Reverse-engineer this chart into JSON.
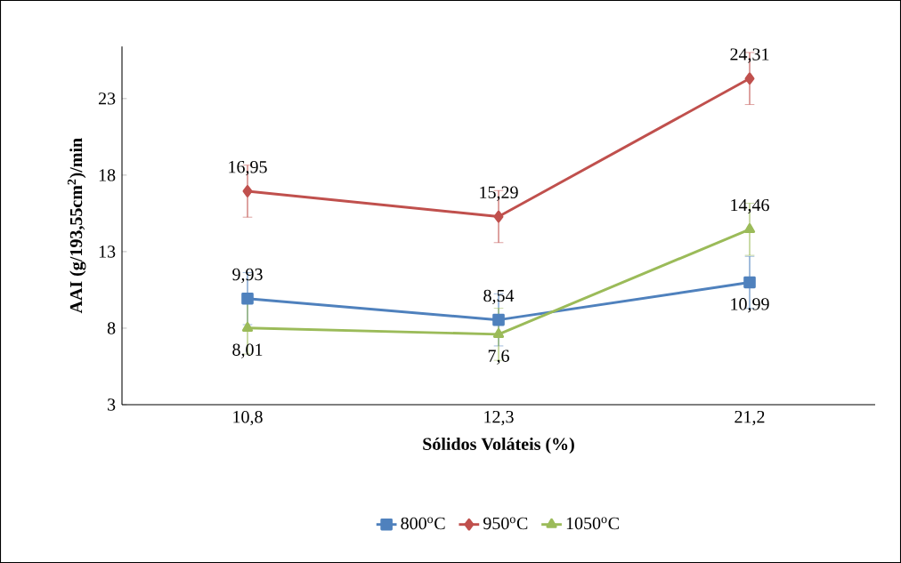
{
  "chart_data": {
    "type": "line",
    "xlabel": "Sólidos Voláteis (%)",
    "ylabel": "AAI  (g/193,55cm$^{2}$)/min",
    "categories": [
      "10,8",
      "12,3",
      "21,2"
    ],
    "ylim": [
      3,
      26.4
    ],
    "yticks": [
      3,
      8,
      13,
      18,
      23
    ],
    "series": [
      {
        "name": "800$^{o}$C",
        "color": "#4f81bd",
        "marker": "square",
        "values": [
          9.93,
          8.54,
          10.99
        ],
        "errors": [
          1.7,
          1.7,
          1.7
        ],
        "value_labels": [
          "9,93",
          "8,54",
          "10,99"
        ]
      },
      {
        "name": "950$^{o}$C",
        "color": "#c0504d",
        "marker": "diamond",
        "values": [
          16.95,
          15.29,
          24.31
        ],
        "errors": [
          1.7,
          1.7,
          1.7
        ],
        "value_labels": [
          "16,95",
          "15,29",
          "24,31"
        ]
      },
      {
        "name": "1050$^{o}$C",
        "color": "#9bbb59",
        "marker": "triangle",
        "values": [
          8.01,
          7.6,
          14.46
        ],
        "errors": [
          1.7,
          1.7,
          1.7
        ],
        "value_labels": [
          "8,01",
          "7,6",
          "14,46"
        ]
      }
    ],
    "legend": "bottom",
    "grid": false,
    "line_style": "solid"
  }
}
